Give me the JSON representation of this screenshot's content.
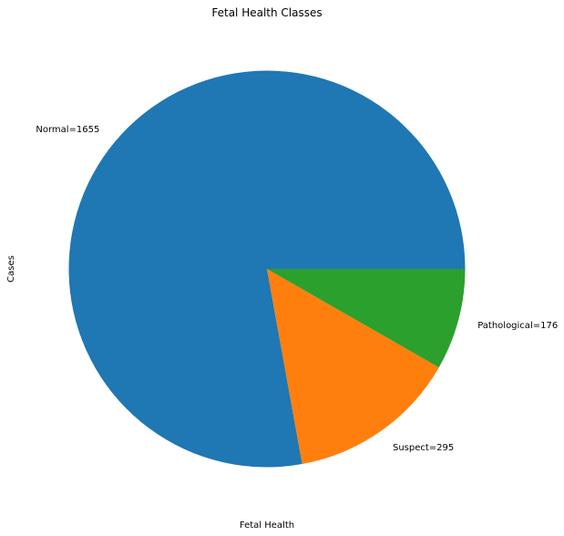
{
  "chart_data": {
    "type": "pie",
    "title": "Fetal Health Classes",
    "xlabel": "Fetal Health",
    "ylabel": "Cases",
    "categories": [
      "Normal",
      "Suspect",
      "Pathological"
    ],
    "values": [
      1655,
      295,
      176
    ],
    "labels": [
      "Normal=1655",
      "Suspect=295",
      "Pathological=176"
    ],
    "colors": [
      "#1f77b4",
      "#ff7f0e",
      "#2ca02c"
    ],
    "legend": "none",
    "grid": false
  }
}
